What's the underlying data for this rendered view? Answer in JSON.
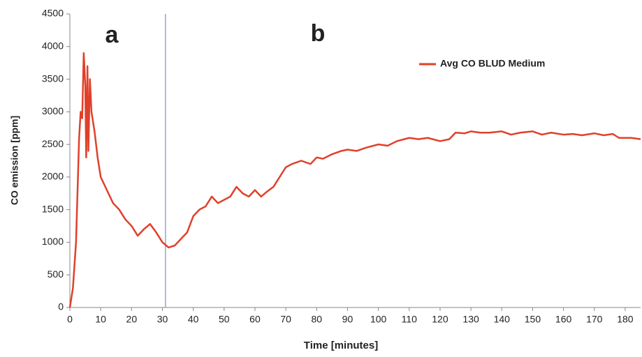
{
  "chart_data": {
    "type": "line",
    "x_label": "Time [minutes]",
    "y_label": "CO emission [ppm]",
    "annotations": [
      "a",
      "b"
    ],
    "divider_x": 31,
    "legend": "top-right",
    "x": [
      0,
      1,
      2,
      3,
      3.5,
      4,
      4.5,
      5,
      5.3,
      5.7,
      6,
      6.5,
      7,
      8,
      9,
      10,
      12,
      14,
      16,
      18,
      20,
      22,
      24,
      26,
      28,
      30,
      32,
      34,
      36,
      38,
      40,
      42,
      44,
      46,
      48,
      50,
      52,
      54,
      56,
      58,
      60,
      62,
      64,
      66,
      68,
      70,
      72,
      75,
      78,
      80,
      82,
      85,
      88,
      90,
      93,
      96,
      100,
      103,
      106,
      110,
      113,
      116,
      120,
      123,
      125,
      128,
      130,
      133,
      136,
      140,
      143,
      146,
      150,
      153,
      156,
      160,
      163,
      166,
      170,
      173,
      176,
      178,
      182,
      185
    ],
    "series": [
      {
        "name": "Avg CO BLUD Medium",
        "color": "#e0402a",
        "values": [
          0,
          300,
          1000,
          2600,
          3000,
          2900,
          3900,
          3400,
          2300,
          3700,
          2400,
          3500,
          3000,
          2700,
          2300,
          2000,
          1800,
          1600,
          1500,
          1350,
          1250,
          1100,
          1200,
          1280,
          1150,
          1000,
          920,
          950,
          1050,
          1150,
          1400,
          1500,
          1550,
          1700,
          1600,
          1650,
          1700,
          1850,
          1750,
          1700,
          1800,
          1700,
          1780,
          1850,
          2000,
          2150,
          2200,
          2250,
          2200,
          2300,
          2280,
          2350,
          2400,
          2420,
          2400,
          2450,
          2500,
          2480,
          2550,
          2600,
          2580,
          2600,
          2550,
          2580,
          2680,
          2670,
          2700,
          2680,
          2680,
          2700,
          2650,
          2680,
          2700,
          2650,
          2680,
          2650,
          2660,
          2640,
          2670,
          2640,
          2660,
          2600,
          2600,
          2580
        ]
      }
    ],
    "xlim": [
      0,
      185
    ],
    "xticks": [
      0,
      10,
      20,
      30,
      40,
      50,
      60,
      70,
      80,
      90,
      100,
      110,
      120,
      130,
      140,
      150,
      160,
      170,
      180
    ],
    "ylim": [
      0,
      4500
    ],
    "yticks": [
      0,
      500,
      1000,
      1500,
      2000,
      2500,
      3000,
      3500,
      4000,
      4500
    ],
    "grid": false
  }
}
